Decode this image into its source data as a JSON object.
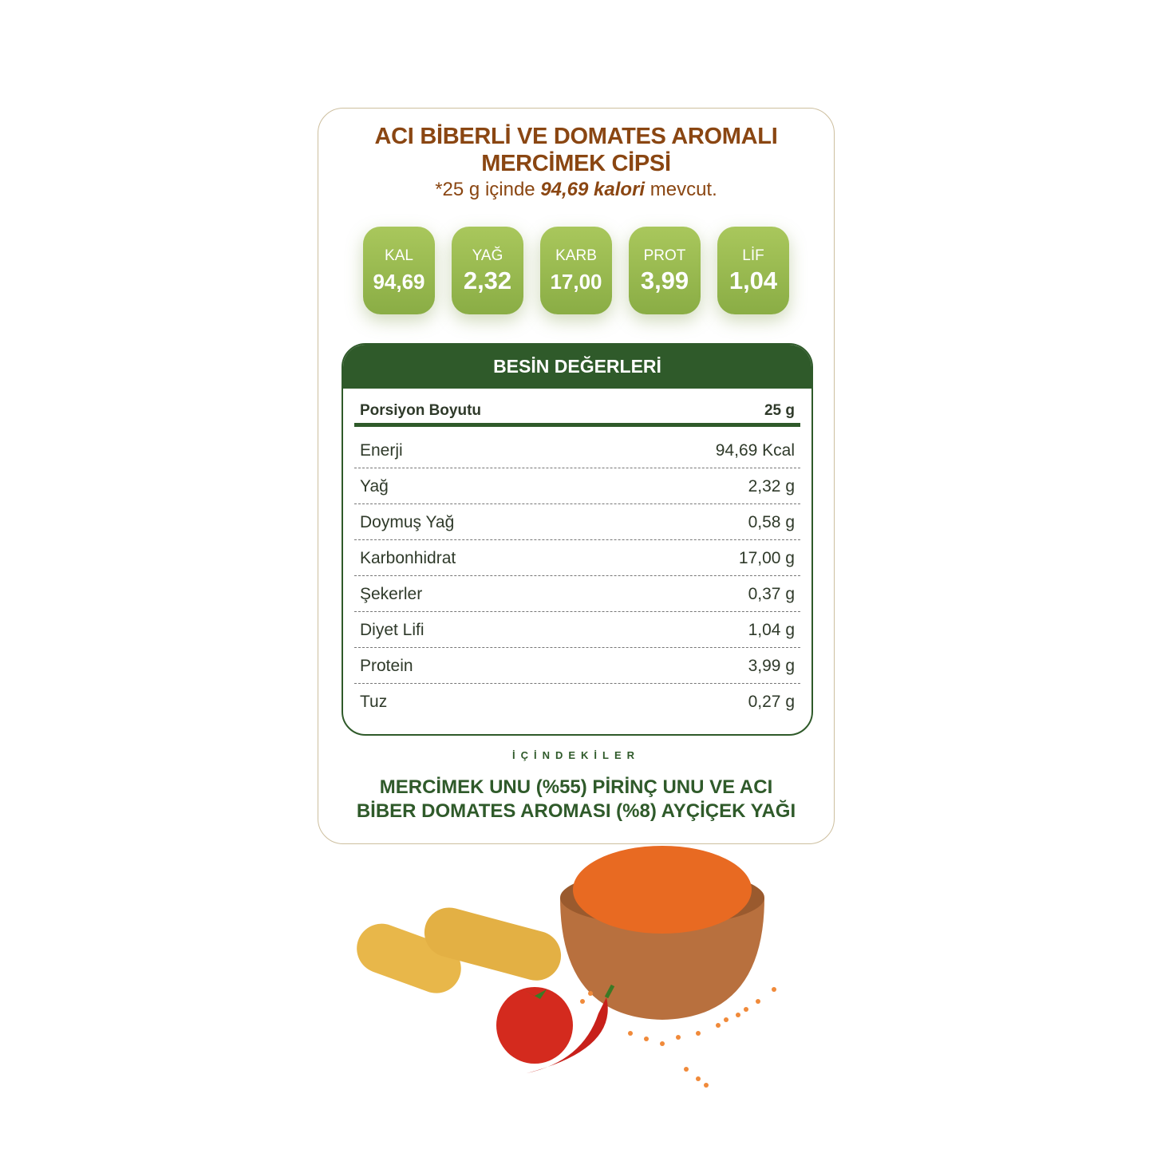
{
  "product": {
    "title_line1": "ACI BİBERLİ VE DOMATES AROMALI",
    "title_line2": "MERCİMEK CİPSİ",
    "sub_pre": "*25 g içinde ",
    "sub_bold": "94,69 kalori",
    "sub_post": " mevcut."
  },
  "badges": [
    {
      "label": "KAL",
      "value": "94,69"
    },
    {
      "label": "YAĞ",
      "value": "2,32"
    },
    {
      "label": "KARB",
      "value": "17,00"
    },
    {
      "label": "PROT",
      "value": "3,99"
    },
    {
      "label": "LİF",
      "value": "1,04"
    }
  ],
  "table": {
    "header": "BESİN DEĞERLERİ",
    "portion_label": "Porsiyon Boyutu",
    "portion_value": "25 g",
    "rows": [
      {
        "name": "Enerji",
        "value": "94,69 Kcal"
      },
      {
        "name": "Yağ",
        "value": "2,32 g"
      },
      {
        "name": "Doymuş Yağ",
        "value": "0,58 g"
      },
      {
        "name": "Karbonhidrat",
        "value": "17,00 g"
      },
      {
        "name": "Şekerler",
        "value": "0,37 g"
      },
      {
        "name": "Diyet Lifi",
        "value": "1,04 g"
      },
      {
        "name": "Protein",
        "value": "3,99 g"
      },
      {
        "name": "Tuz",
        "value": "0,27 g"
      }
    ]
  },
  "ingredients": {
    "heading": "İÇİNDEKİLER",
    "line1": "MERCİMEK UNU (%55) PİRİNÇ UNU VE ACI",
    "line2": "BİBER DOMATES AROMASI (%8) AYÇİÇEK YAĞI"
  },
  "colors": {
    "title": "#8a4612",
    "green_dark": "#2f5a2a",
    "badge_green": "#9bbb50"
  }
}
